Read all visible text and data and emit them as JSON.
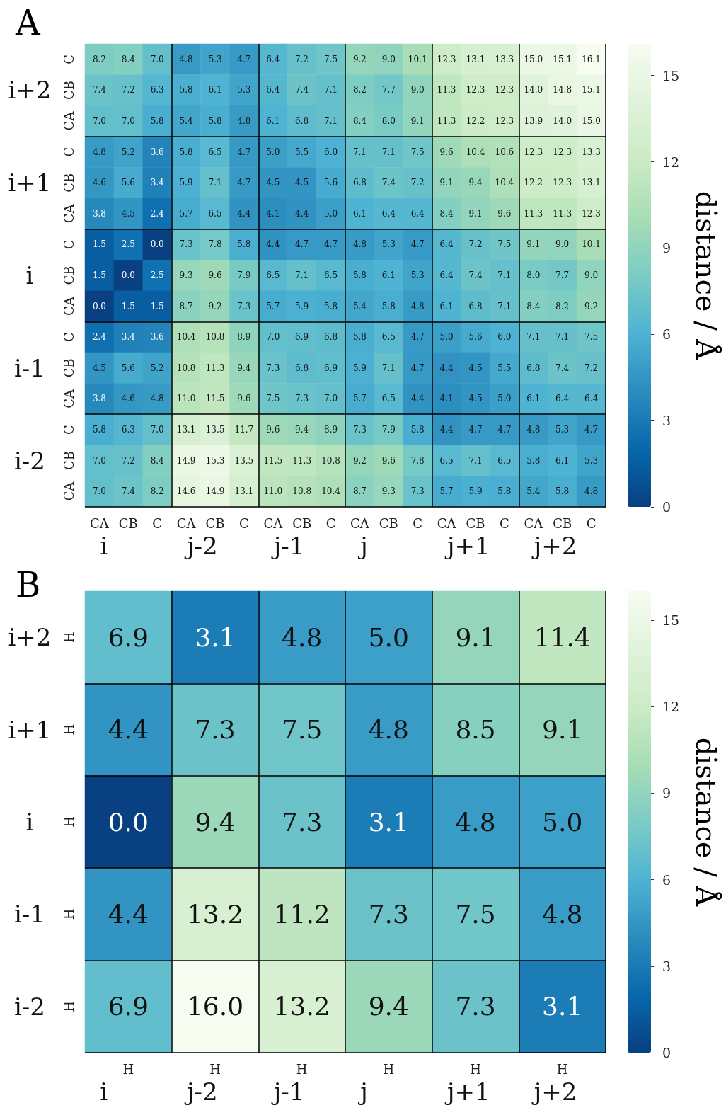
{
  "chart_data": [
    {
      "type": "heatmap",
      "title": "A",
      "categories": [
        "CA",
        "CB",
        "C",
        "CA",
        "CB",
        "C",
        "CA",
        "CB",
        "C",
        "CA",
        "CB",
        "C",
        "CA",
        "CB",
        "C",
        "CA",
        "CB",
        "C"
      ],
      "y_categories": [
        "C",
        "CB",
        "CA",
        "C",
        "CB",
        "CA",
        "C",
        "CB",
        "CA",
        "C",
        "CB",
        "CA",
        "C",
        "CB",
        "CA"
      ],
      "cells": [
        [
          8.2,
          8.4,
          7.0,
          4.8,
          5.3,
          4.7,
          6.4,
          7.2,
          7.5,
          9.2,
          9.0,
          10.1,
          12.3,
          13.1,
          13.3,
          15.0,
          15.1,
          16.1
        ],
        [
          7.4,
          7.2,
          6.3,
          5.8,
          6.1,
          5.3,
          6.4,
          7.4,
          7.1,
          8.2,
          7.7,
          9.0,
          11.3,
          12.3,
          12.3,
          14.0,
          14.8,
          15.1
        ],
        [
          7.0,
          7.0,
          5.8,
          5.4,
          5.8,
          4.8,
          6.1,
          6.8,
          7.1,
          8.4,
          8.0,
          9.1,
          11.3,
          12.2,
          12.3,
          13.9,
          14.0,
          15.0
        ],
        [
          4.8,
          5.2,
          3.6,
          5.8,
          6.5,
          4.7,
          5.0,
          5.5,
          6.0,
          7.1,
          7.1,
          7.5,
          9.6,
          10.4,
          10.6,
          12.3,
          12.3,
          13.3
        ],
        [
          4.6,
          5.6,
          3.4,
          5.9,
          7.1,
          4.7,
          4.5,
          4.5,
          5.6,
          6.8,
          7.4,
          7.2,
          9.1,
          9.4,
          10.4,
          12.2,
          12.3,
          13.1
        ],
        [
          3.8,
          4.5,
          2.4,
          5.7,
          6.5,
          4.4,
          4.1,
          4.4,
          5.0,
          6.1,
          6.4,
          6.4,
          8.4,
          9.1,
          9.6,
          11.3,
          11.3,
          12.3
        ],
        [
          1.5,
          2.5,
          0.0,
          7.3,
          7.8,
          5.8,
          4.4,
          4.7,
          4.7,
          4.8,
          5.3,
          4.7,
          6.4,
          7.2,
          7.5,
          9.1,
          9.0,
          10.1
        ],
        [
          1.5,
          0.0,
          2.5,
          9.3,
          9.6,
          7.9,
          6.5,
          7.1,
          6.5,
          5.8,
          6.1,
          5.3,
          6.4,
          7.4,
          7.1,
          8.0,
          7.7,
          9.0
        ],
        [
          0.0,
          1.5,
          1.5,
          8.7,
          9.2,
          7.3,
          5.7,
          5.9,
          5.8,
          5.4,
          5.8,
          4.8,
          6.1,
          6.8,
          7.1,
          8.4,
          8.2,
          9.2
        ],
        [
          2.4,
          3.4,
          3.6,
          10.4,
          10.8,
          8.9,
          7.0,
          6.9,
          6.8,
          5.8,
          6.5,
          4.7,
          5.0,
          5.6,
          6.0,
          7.1,
          7.1,
          7.5
        ],
        [
          4.5,
          5.6,
          5.2,
          10.8,
          11.3,
          9.4,
          7.3,
          6.8,
          6.9,
          5.9,
          7.1,
          4.7,
          4.4,
          4.5,
          5.5,
          6.8,
          7.4,
          7.2
        ],
        [
          3.8,
          4.6,
          4.8,
          11.0,
          11.5,
          9.6,
          7.5,
          7.3,
          7.0,
          5.7,
          6.5,
          4.4,
          4.1,
          4.5,
          5.0,
          6.1,
          6.4,
          6.4
        ],
        [
          5.8,
          6.3,
          7.0,
          13.1,
          13.5,
          11.7,
          9.6,
          9.4,
          8.9,
          7.3,
          7.9,
          5.8,
          4.4,
          4.7,
          4.7,
          4.8,
          5.3,
          4.7
        ],
        [
          7.0,
          7.2,
          8.4,
          14.9,
          15.3,
          13.5,
          11.5,
          11.3,
          10.8,
          9.2,
          9.6,
          7.8,
          6.5,
          7.1,
          6.5,
          5.8,
          6.1,
          5.3
        ],
        [
          7.0,
          7.4,
          8.2,
          14.6,
          14.9,
          13.1,
          11.0,
          10.8,
          10.4,
          8.7,
          9.3,
          7.3,
          5.7,
          5.9,
          5.8,
          5.4,
          5.8,
          4.8
        ]
      ],
      "cell_labels": [
        [
          "8.2",
          "8.4",
          "7.0",
          "4.8",
          "5.3",
          "4.7",
          "6.4",
          "7.2",
          "7.5",
          "9.2",
          "9.0",
          "10.1",
          "12.3",
          "13.1",
          "13.3",
          "15.0",
          "15.1",
          "16.1"
        ],
        [
          "7.4",
          "7.2",
          "6.3",
          "5.8",
          "6.1",
          "5.3",
          "6.4",
          "7.4",
          "7.1",
          "8.2",
          "7.7",
          "9.0",
          "11.3",
          "12.3",
          "12.3",
          "14.0",
          "14.8",
          "15.1"
        ],
        [
          "7.0",
          "7.0",
          "5.8",
          "5.4",
          "5.8",
          "4.8",
          "6.1",
          "6.8",
          "7.1",
          "8.4",
          "8.0",
          "9.1",
          "11.3",
          "12.2",
          "12.3",
          "13.9",
          "14.0",
          "15.0"
        ],
        [
          "4.8",
          "5.2",
          "3.6",
          "5.8",
          "6.5",
          "4.7",
          "5.0",
          "5.5",
          "6.0",
          "7.1",
          "7.1",
          "7.5",
          "9.6",
          "10.4",
          "10.6",
          "12.3",
          "12.3",
          "13.3"
        ],
        [
          "4.6",
          "5.6",
          "3.4",
          "5.9",
          "7.1",
          "4.7",
          "4.5",
          "4.5",
          "5.6",
          "6.8",
          "7.4",
          "7.2",
          "9.1",
          "9.4",
          "10.4",
          "12.2",
          "12.3",
          "13.1"
        ],
        [
          "3.8",
          "4.5",
          "2.4",
          "5.7",
          "6.5",
          "4.4",
          "4.1",
          "4.4",
          "5.0",
          "6.1",
          "6.4",
          "6.4",
          "8.4",
          "9.1",
          "9.6",
          "11.3",
          "11.3",
          "12.3"
        ],
        [
          "1.5",
          "2.5",
          "0.0",
          "7.3",
          "7.8",
          "5.8",
          "4.4",
          "4.7",
          "4.7",
          "4.8",
          "5.3",
          "4.7",
          "6.4",
          "7.2",
          "7.5",
          "9.1",
          "9.0",
          "10.1"
        ],
        [
          "1.5",
          "0.0",
          "2.5",
          "9.3",
          "9.6",
          "7.9",
          "6.5",
          "7.1",
          "6.5",
          "5.8",
          "6.1",
          "5.3",
          "6.4",
          "7.4",
          "7.1",
          "8.0",
          "7.7",
          "9.0"
        ],
        [
          "0.0",
          "1.5",
          "1.5",
          "8.7",
          "9.2",
          "7.3",
          "5.7",
          "5.9",
          "5.8",
          "5.4",
          "5.8",
          "4.8",
          "6.1",
          "6.8",
          "7.1",
          "8.4",
          "8.2",
          "9.2"
        ],
        [
          "2.4",
          "3.4",
          "3.6",
          "10.4",
          "10.8",
          "8.9",
          "7.0",
          "6.9",
          "6.8",
          "5.8",
          "6.5",
          "4.7",
          "5.0",
          "5.6",
          "6.0",
          "7.1",
          "7.1",
          "7.5"
        ],
        [
          "4.5",
          "5.6",
          "5.2",
          "10.8",
          "11.3",
          "9.4",
          "7.3",
          "6.8",
          "6.9",
          "5.9",
          "7.1",
          "4.7",
          "4.4",
          "4.5",
          "5.5",
          "6.8",
          "7.4",
          "7.2"
        ],
        [
          "3.8",
          "4.6",
          "4.8",
          "11.0",
          "11.5",
          "9.6",
          "7.5",
          "7.3",
          "7.0",
          "5.7",
          "6.5",
          "4.4",
          "4.1",
          "4.5",
          "5.0",
          "6.1",
          "6.4",
          "6.4"
        ],
        [
          "5.8",
          "6.3",
          "7.0",
          "13.1",
          "13.5",
          "11.7",
          "9.6",
          "9.4",
          "8.9",
          "7.3",
          "7.9",
          "5.8",
          "4.4",
          "4.7",
          "4.7",
          "4.8",
          "5.3",
          "4.7"
        ],
        [
          "7.0",
          "7.2",
          "8.4",
          "14.9",
          "15.3",
          "13.5",
          "11.5",
          "11.3",
          "10.8",
          "9.2",
          "9.6",
          "7.8",
          "6.5",
          "7.1",
          "6.5",
          "5.8",
          "6.1",
          "5.3"
        ],
        [
          "7.0",
          "7.4",
          "8.2",
          "14.6",
          "14.9",
          "13.1",
          "11.0",
          "10.8",
          "10.4",
          "8.7",
          "9.3",
          "7.3",
          "5.7",
          "5.9",
          "5.8",
          "5.4",
          "5.8",
          "4.8"
        ]
      ],
      "annotations": [
        "i",
        "j-2",
        "j-1",
        "j",
        "j+1",
        "j+2",
        "i+2",
        "i+1",
        "i",
        "i-1",
        "i-2"
      ],
      "clabel": "distance / Å",
      "clim": [
        0,
        16.1
      ],
      "cticks": [
        0,
        3,
        6,
        9,
        12,
        15
      ],
      "data_labels": true,
      "grid": true
    },
    {
      "type": "heatmap",
      "title": "B",
      "categories": [
        "H",
        "H",
        "H",
        "H",
        "H",
        "H"
      ],
      "y_categories": [
        "H",
        "H",
        "H",
        "H",
        "H"
      ],
      "cells": [
        [
          6.9,
          3.1,
          4.8,
          5.0,
          9.1,
          11.4
        ],
        [
          4.4,
          7.3,
          7.5,
          4.8,
          8.5,
          9.1
        ],
        [
          0.0,
          9.4,
          7.3,
          3.1,
          4.8,
          5.0
        ],
        [
          4.4,
          13.2,
          11.2,
          7.3,
          7.5,
          4.8
        ],
        [
          6.9,
          16.0,
          13.2,
          9.4,
          7.3,
          3.1
        ]
      ],
      "cell_labels": [
        [
          "6.9",
          "3.1",
          "4.8",
          "5.0",
          "9.1",
          "11.4"
        ],
        [
          "4.4",
          "7.3",
          "7.5",
          "4.8",
          "8.5",
          "9.1"
        ],
        [
          "0.0",
          "9.4",
          "7.3",
          "3.1",
          "4.8",
          "5.0"
        ],
        [
          "4.4",
          "13.2",
          "11.2",
          "7.3",
          "7.5",
          "4.8"
        ],
        [
          "6.9",
          "16.0",
          "13.2",
          "9.4",
          "7.3",
          "3.1"
        ]
      ],
      "annotations": [
        "i",
        "j-2",
        "j-1",
        "j",
        "j+1",
        "j+2",
        "i+2",
        "i+1",
        "i",
        "i-1",
        "i-2"
      ],
      "clabel": "distance / Å",
      "clim": [
        0,
        16.0
      ],
      "cticks": [
        0,
        3,
        6,
        9,
        12,
        15
      ],
      "data_labels": true,
      "grid": true
    }
  ]
}
